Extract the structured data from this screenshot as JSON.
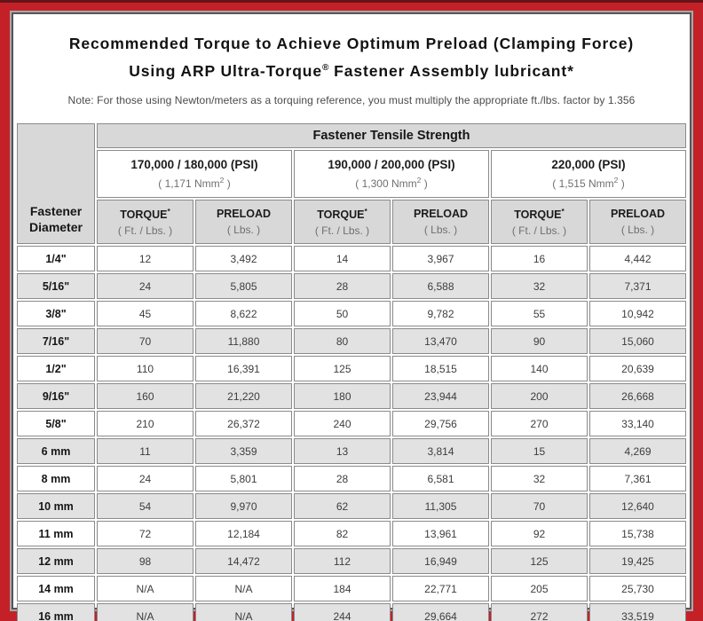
{
  "page": {
    "title_line1": "Recommended Torque to Achieve Optimum Preload (Clamping Force)",
    "title_line2": {
      "pre": "Using ARP Ultra-Torque",
      "sup": "®",
      "post": " Fastener Assembly lubricant*"
    },
    "note": "Note: For those using Newton/meters as a torquing reference, you must multiply the appropriate ft./lbs. factor by 1.356"
  },
  "colors": {
    "frame_red": "#c32127",
    "frame_dark": "#651418",
    "header_gray": "#d8d8d8",
    "row_alt_gray": "#e2e2e2"
  },
  "table": {
    "corner_header": {
      "line1": "Fastener",
      "line2": "Diameter"
    },
    "tensile_header": "Fastener Tensile Strength",
    "groups": [
      {
        "psi": "170,000 / 180,000 (PSI)",
        "nmm_pre": "( 1,171 Nmm",
        "nmm_sup": "2",
        "nmm_suf": " )"
      },
      {
        "psi": "190,000 / 200,000 (PSI)",
        "nmm_pre": "( 1,300 Nmm",
        "nmm_sup": "2",
        "nmm_suf": " )"
      },
      {
        "psi": "220,000 (PSI)",
        "nmm_pre": "( 1,515 Nmm",
        "nmm_sup": "2",
        "nmm_suf": " )"
      }
    ],
    "col_headers": {
      "torque_label": "TORQUE",
      "torque_sup": "*",
      "torque_sub": "( Ft. / Lbs. )",
      "preload_label": "PRELOAD",
      "preload_sub": "( Lbs. )"
    },
    "rows": [
      {
        "diameter": "1/4\"",
        "values": [
          "12",
          "3,492",
          "14",
          "3,967",
          "16",
          "4,442"
        ]
      },
      {
        "diameter": "5/16\"",
        "values": [
          "24",
          "5,805",
          "28",
          "6,588",
          "32",
          "7,371"
        ]
      },
      {
        "diameter": "3/8\"",
        "values": [
          "45",
          "8,622",
          "50",
          "9,782",
          "55",
          "10,942"
        ]
      },
      {
        "diameter": "7/16\"",
        "values": [
          "70",
          "11,880",
          "80",
          "13,470",
          "90",
          "15,060"
        ]
      },
      {
        "diameter": "1/2\"",
        "values": [
          "110",
          "16,391",
          "125",
          "18,515",
          "140",
          "20,639"
        ]
      },
      {
        "diameter": "9/16\"",
        "values": [
          "160",
          "21,220",
          "180",
          "23,944",
          "200",
          "26,668"
        ]
      },
      {
        "diameter": "5/8\"",
        "values": [
          "210",
          "26,372",
          "240",
          "29,756",
          "270",
          "33,140"
        ]
      },
      {
        "diameter": "6 mm",
        "values": [
          "11",
          "3,359",
          "13",
          "3,814",
          "15",
          "4,269"
        ]
      },
      {
        "diameter": "8 mm",
        "values": [
          "24",
          "5,801",
          "28",
          "6,581",
          "32",
          "7,361"
        ]
      },
      {
        "diameter": "10 mm",
        "values": [
          "54",
          "9,970",
          "62",
          "11,305",
          "70",
          "12,640"
        ]
      },
      {
        "diameter": "11 mm",
        "values": [
          "72",
          "12,184",
          "82",
          "13,961",
          "92",
          "15,738"
        ]
      },
      {
        "diameter": "12 mm",
        "values": [
          "98",
          "14,472",
          "112",
          "16,949",
          "125",
          "19,425"
        ]
      },
      {
        "diameter": "14 mm",
        "values": [
          "N/A",
          "N/A",
          "184",
          "22,771",
          "205",
          "25,730"
        ]
      },
      {
        "diameter": "16 mm",
        "values": [
          "N/A",
          "N/A",
          "244",
          "29,664",
          "272",
          "33,519"
        ]
      }
    ]
  }
}
